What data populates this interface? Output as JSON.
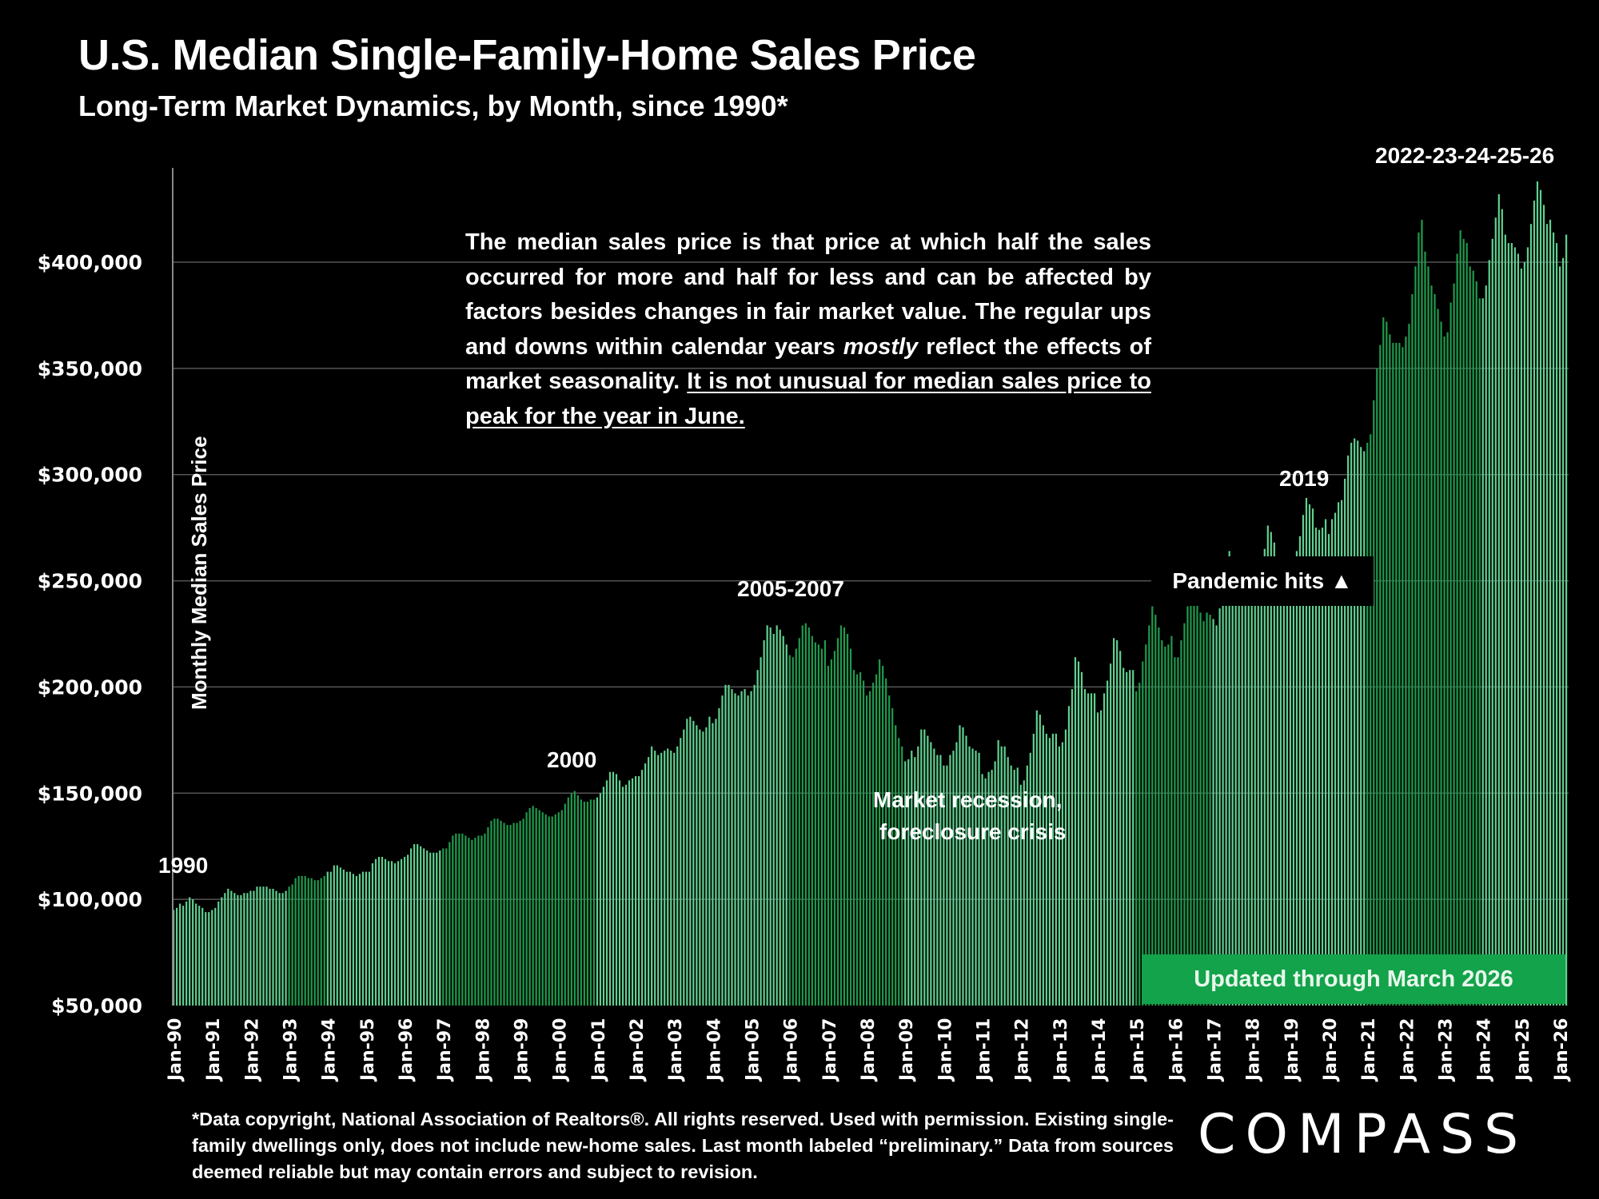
{
  "header": {
    "title": "U.S. Median Single-Family-Home Sales Price",
    "subtitle": "Long-Term Market Dynamics, by Month, since 1990*"
  },
  "note": {
    "part1": "The median sales price is that price at which half the sales occurred for more and half for less and can be affected by factors besides changes in fair market value. The regular ups and downs within calendar years ",
    "italic": "mostly",
    "part2": " reflect the effects of market seasonality. ",
    "underlined": "It is not unusual for median sales price to peak for the year in June."
  },
  "badges": {
    "pandemic": "Pandemic hits ▲",
    "updated": "Updated through March 2026"
  },
  "footnote": "*Data copyright, National Association of Realtors®. All rights reserved. Used with permission. Existing single-family dwellings only, does  not include new-home sales. Last month labeled “preliminary.” Data from sources deemed reliable but may contain errors and subject to revision.",
  "logo": {
    "text": "COMPASS"
  },
  "colors": {
    "background": "#000000",
    "bar_light": "#5fd08f",
    "bar_dark": "#1f9a4c",
    "updated_badge": "#13a34a",
    "gridline": "#555555"
  },
  "chart_data": {
    "type": "bar",
    "title": "U.S. Median Single-Family-Home Sales Price",
    "subtitle": "Long-Term Market Dynamics, by Month, since 1990*",
    "xlabel": "",
    "ylabel": "Monthly Median Sales Price",
    "ylim": [
      50000,
      450000
    ],
    "yticks": [
      50000,
      100000,
      150000,
      200000,
      250000,
      300000,
      350000,
      400000
    ],
    "ytick_labels": [
      "$50,000",
      "$100,000",
      "$150,000",
      "$200,000",
      "$250,000",
      "$300,000",
      "$350,000",
      "$400,000"
    ],
    "grid": true,
    "start": "Jan-1990",
    "end": "Mar-2026",
    "frequency": "monthly",
    "xtick_labels": [
      "Jan-90",
      "Jan-91",
      "Jan-92",
      "Jan-93",
      "Jan-94",
      "Jan-95",
      "Jan-96",
      "Jan-97",
      "Jan-98",
      "Jan-99",
      "Jan-00",
      "Jan-01",
      "Jan-02",
      "Jan-03",
      "Jan-04",
      "Jan-05",
      "Jan-06",
      "Jan-07",
      "Jan-08",
      "Jan-09",
      "Jan-10",
      "Jan-11",
      "Jan-12",
      "Jan-13",
      "Jan-14",
      "Jan-15",
      "Jan-16",
      "Jan-17",
      "Jan-18",
      "Jan-19",
      "Jan-20",
      "Jan-21",
      "Jan-22",
      "Jan-23",
      "Jan-24",
      "Jan-25",
      "Jan-26"
    ],
    "yearly_anchors_note": "Monthly values per year: [Jan, Feb, Mar, Apr, May, Jun, Jul, Aug, Sep, Oct, Nov, Dec]",
    "series": [
      {
        "name": "Monthly Median Sales Price",
        "values_by_year": {
          "1990": [
            95000,
            96000,
            98000,
            97000,
            99000,
            101000,
            100000,
            98000,
            97000,
            96000,
            94000,
            94000
          ],
          "1991": [
            95000,
            96000,
            99000,
            101000,
            103000,
            105000,
            104000,
            103000,
            102000,
            102000,
            103000,
            103000
          ],
          "1992": [
            104000,
            104000,
            106000,
            106000,
            106000,
            106000,
            105000,
            105000,
            104000,
            103000,
            103000,
            104000
          ],
          "1993": [
            106000,
            107000,
            110000,
            111000,
            111000,
            111000,
            110000,
            110000,
            109000,
            109000,
            110000,
            111000
          ],
          "1994": [
            113000,
            113000,
            116000,
            116000,
            115000,
            114000,
            113000,
            113000,
            112000,
            111000,
            112000,
            113000
          ],
          "1995": [
            113000,
            113000,
            117000,
            119000,
            120000,
            120000,
            119000,
            118000,
            118000,
            117000,
            118000,
            119000
          ],
          "1996": [
            120000,
            121000,
            124000,
            126000,
            126000,
            125000,
            124000,
            123000,
            122000,
            122000,
            122000,
            123000
          ],
          "1997": [
            124000,
            124000,
            127000,
            130000,
            131000,
            131000,
            131000,
            130000,
            129000,
            128000,
            129000,
            130000
          ],
          "1998": [
            130000,
            131000,
            134000,
            137000,
            138000,
            138000,
            137000,
            136000,
            135000,
            135000,
            136000,
            136000
          ],
          "1999": [
            137000,
            138000,
            141000,
            143000,
            144000,
            143000,
            142000,
            141000,
            140000,
            139000,
            139000,
            140000
          ],
          "2000": [
            141000,
            142000,
            145000,
            148000,
            150000,
            151000,
            149000,
            147000,
            146000,
            146000,
            147000,
            147000
          ],
          "2001": [
            148000,
            150000,
            153000,
            156000,
            160000,
            160000,
            159000,
            156000,
            153000,
            154000,
            156000,
            157000
          ],
          "2002": [
            158000,
            158000,
            161000,
            164000,
            167000,
            172000,
            170000,
            168000,
            169000,
            170000,
            171000,
            170000
          ],
          "2003": [
            169000,
            172000,
            176000,
            180000,
            185000,
            186000,
            184000,
            182000,
            180000,
            179000,
            181000,
            186000
          ],
          "2004": [
            183000,
            185000,
            190000,
            196000,
            201000,
            201000,
            199000,
            197000,
            196000,
            198000,
            199000,
            196000
          ],
          "2005": [
            198000,
            201000,
            208000,
            214000,
            222000,
            229000,
            228000,
            225000,
            229000,
            227000,
            224000,
            220000
          ],
          "2006": [
            215000,
            214000,
            218000,
            223000,
            229000,
            230000,
            228000,
            224000,
            221000,
            220000,
            218000,
            222000
          ],
          "2007": [
            210000,
            213000,
            217000,
            223000,
            229000,
            228000,
            225000,
            218000,
            208000,
            206000,
            207000,
            203000
          ],
          "2008": [
            196000,
            198000,
            202000,
            206000,
            213000,
            210000,
            204000,
            196000,
            190000,
            182000,
            176000,
            172000
          ],
          "2009": [
            165000,
            166000,
            170000,
            167000,
            172000,
            180000,
            180000,
            177000,
            174000,
            171000,
            168000,
            168000
          ],
          "2010": [
            163000,
            163000,
            168000,
            170000,
            174000,
            182000,
            181000,
            177000,
            172000,
            171000,
            170000,
            169000
          ],
          "2011": [
            159000,
            157000,
            160000,
            161000,
            165000,
            175000,
            172000,
            172000,
            167000,
            163000,
            161000,
            162000
          ],
          "2012": [
            154000,
            156000,
            163000,
            169000,
            178000,
            189000,
            187000,
            182000,
            178000,
            176000,
            178000,
            178000
          ],
          "2013": [
            172000,
            174000,
            180000,
            191000,
            199000,
            214000,
            212000,
            207000,
            199000,
            197000,
            197000,
            197000
          ],
          "2014": [
            188000,
            189000,
            197000,
            203000,
            211000,
            223000,
            222000,
            217000,
            209000,
            207000,
            208000,
            208000
          ],
          "2015": [
            198000,
            202000,
            212000,
            220000,
            229000,
            238000,
            234000,
            228000,
            222000,
            219000,
            220000,
            224000
          ],
          "2016": [
            214000,
            214000,
            222000,
            230000,
            238000,
            247000,
            244000,
            241000,
            235000,
            231000,
            235000,
            234000
          ],
          "2017": [
            232000,
            229000,
            237000,
            246000,
            252000,
            264000,
            258000,
            253000,
            248000,
            247000,
            248000,
            249000
          ],
          "2018": [
            241000,
            243000,
            252000,
            259000,
            265000,
            276000,
            273000,
            268000,
            260000,
            258000,
            258000,
            258000
          ],
          "2019": [
            250000,
            257000,
            264000,
            271000,
            281000,
            289000,
            286000,
            284000,
            275000,
            274000,
            275000,
            279000
          ],
          "2020": [
            272000,
            279000,
            282000,
            287000,
            288000,
            298000,
            309000,
            315000,
            317000,
            316000,
            313000,
            311000
          ],
          "2021": [
            315000,
            319000,
            335000,
            350000,
            361000,
            374000,
            372000,
            366000,
            362000,
            362000,
            362000,
            360000
          ],
          "2022": [
            365000,
            371000,
            385000,
            398000,
            414000,
            420000,
            405000,
            398000,
            389000,
            385000,
            378000,
            372000
          ],
          "2023": [
            365000,
            367000,
            381000,
            390000,
            404000,
            415000,
            411000,
            409000,
            398000,
            396000,
            391000,
            383000
          ],
          "2024": [
            383000,
            389000,
            401000,
            411000,
            421000,
            432000,
            425000,
            413000,
            409000,
            409000,
            407000,
            404000
          ],
          "2025": [
            397000,
            400000,
            407000,
            418000,
            429000,
            438000,
            434000,
            427000,
            418000,
            420000,
            414000,
            409000
          ],
          "2026": [
            398000,
            402000,
            413000
          ]
        }
      }
    ],
    "annotations": [
      {
        "text": "1990",
        "at": "Jan-1990"
      },
      {
        "text": "2000",
        "at": "mid-2000"
      },
      {
        "text": "2005-2007",
        "at": "2006"
      },
      {
        "text": "Market recession, foreclosure crisis",
        "at": "2010-2011"
      },
      {
        "text": "2019",
        "at": "mid-2019"
      },
      {
        "text": "2022-23-24-25-26",
        "at": "2022-2026"
      },
      {
        "text": "Pandemic hits ▲",
        "at": "Mar-2020"
      }
    ],
    "legend": "none"
  }
}
